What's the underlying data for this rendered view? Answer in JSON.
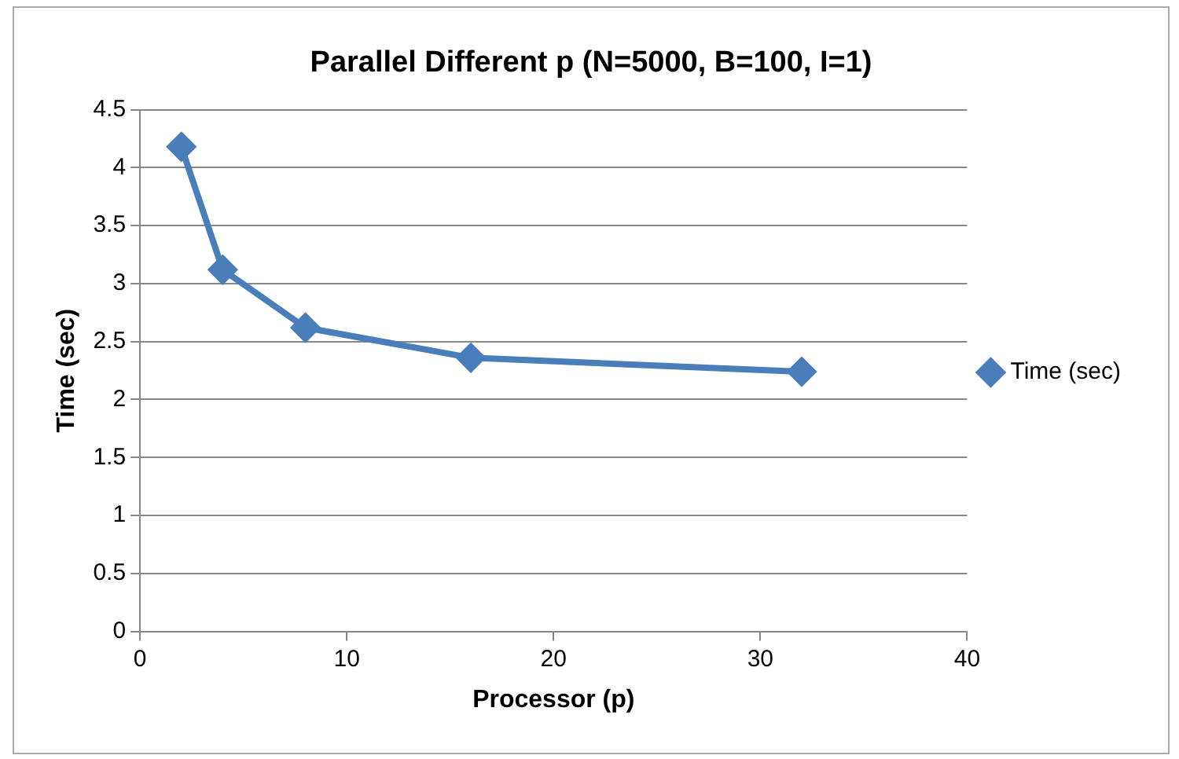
{
  "chart_data": {
    "type": "line",
    "title": "Parallel Different p (N=5000, B=100, I=1)",
    "xlabel": "Processor (p)",
    "ylabel": "Time (sec)",
    "x": [
      2,
      4,
      8,
      16,
      32
    ],
    "series": [
      {
        "name": "Time (sec)",
        "color": "#4a7ebb",
        "values": [
          4.18,
          3.12,
          2.62,
          2.36,
          2.24
        ]
      }
    ],
    "xlim": [
      0,
      40
    ],
    "xticks": [
      0,
      10,
      20,
      30,
      40
    ],
    "ylim": [
      0,
      4.5
    ],
    "yticks": [
      0,
      0.5,
      1,
      1.5,
      2,
      2.5,
      3,
      3.5,
      4,
      4.5
    ],
    "grid": "y",
    "legend": "right",
    "marker": "diamond",
    "line_style": "solid"
  }
}
